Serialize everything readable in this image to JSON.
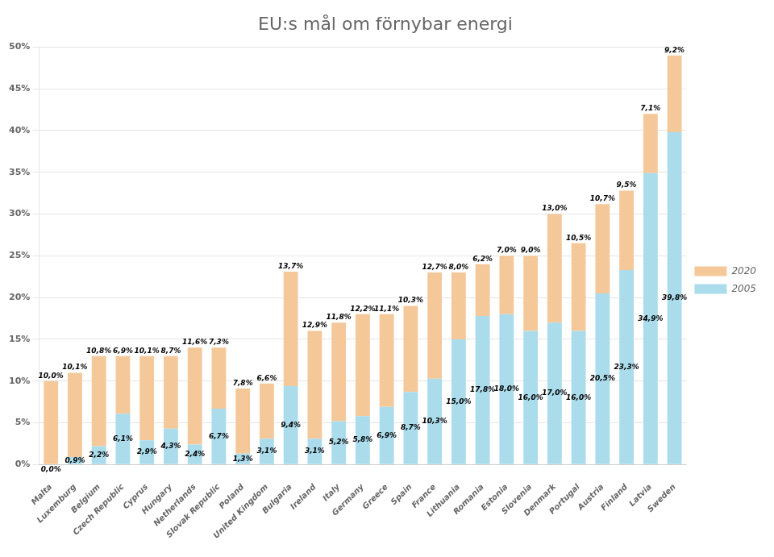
{
  "chart_data": {
    "type": "bar",
    "title": "EU:s mål om förnybar energi",
    "categories": [
      "Malta",
      "Luxemburg",
      "Belgium",
      "Czech Republic",
      "Cyprus",
      "Hungary",
      "Netherlands",
      "Slovak Republic",
      "Poland",
      "United Kingdom",
      "Bulgaria",
      "Ireland",
      "Italy",
      "Germany",
      "Greece",
      "Spain",
      "France",
      "Lithuania",
      "Romania",
      "Estonia",
      "Slovenia",
      "Denmark",
      "Portugal",
      "Austria",
      "Finland",
      "Latvia",
      "Sweden"
    ],
    "series": [
      {
        "name": "2005",
        "color": "#aadcec",
        "values": [
          0.0,
          0.9,
          2.2,
          6.1,
          2.9,
          4.3,
          2.4,
          6.7,
          1.3,
          3.1,
          9.4,
          3.1,
          5.2,
          5.8,
          6.9,
          8.7,
          10.3,
          15.0,
          17.8,
          18.0,
          16.0,
          17.0,
          16.0,
          20.5,
          23.3,
          34.9,
          39.8
        ],
        "value_labels": [
          "0,0%",
          "0,9%",
          "2,2%",
          "6,1%",
          "2,9%",
          "4,3%",
          "2,4%",
          "6,7%",
          "1,3%",
          "3,1%",
          "9,4%",
          "3,1%",
          "5,2%",
          "5,8%",
          "6,9%",
          "8,7%",
          "10,3%",
          "15,0%",
          "17,8%",
          "18,0%",
          "16,0%",
          "17,0%",
          "16,0%",
          "20,5%",
          "23,3%",
          "34,9%",
          "39,8%"
        ]
      },
      {
        "name": "2020",
        "color": "#f5c89a",
        "values": [
          10.0,
          10.1,
          10.8,
          6.9,
          10.1,
          8.7,
          11.6,
          7.3,
          7.8,
          6.6,
          13.7,
          12.9,
          11.8,
          12.2,
          11.1,
          10.3,
          12.7,
          8.0,
          6.2,
          7.0,
          9.0,
          13.0,
          10.5,
          10.7,
          9.5,
          7.1,
          9.2
        ],
        "value_labels": [
          "10,0%",
          "10,1%",
          "10,8%",
          "6,9%",
          "10,1%",
          "8,7%",
          "11,6%",
          "7,3%",
          "7,8%",
          "6,6%",
          "13,7%",
          "12,9%",
          "11,8%",
          "12,2%",
          "11,1%",
          "10,3%",
          "12,7%",
          "8,0%",
          "6,2%",
          "7,0%",
          "9,0%",
          "13,0%",
          "10,5%",
          "10,7%",
          "9,5%",
          "7,1%",
          "9,2%"
        ]
      }
    ],
    "stacked": true,
    "data_labels": true,
    "ylim": [
      0,
      50
    ],
    "yticks": [
      {
        "value": 0,
        "label": "0%"
      },
      {
        "value": 5,
        "label": "5%"
      },
      {
        "value": 10,
        "label": "10%"
      },
      {
        "value": 15,
        "label": "15%"
      },
      {
        "value": 20,
        "label": "20%"
      },
      {
        "value": 25,
        "label": "25%"
      },
      {
        "value": 30,
        "label": "30%"
      },
      {
        "value": 35,
        "label": "35%"
      },
      {
        "value": 40,
        "label": "40%"
      },
      {
        "value": 45,
        "label": "45%"
      },
      {
        "value": 50,
        "label": "50%"
      }
    ],
    "grid": true,
    "legend": "right"
  }
}
